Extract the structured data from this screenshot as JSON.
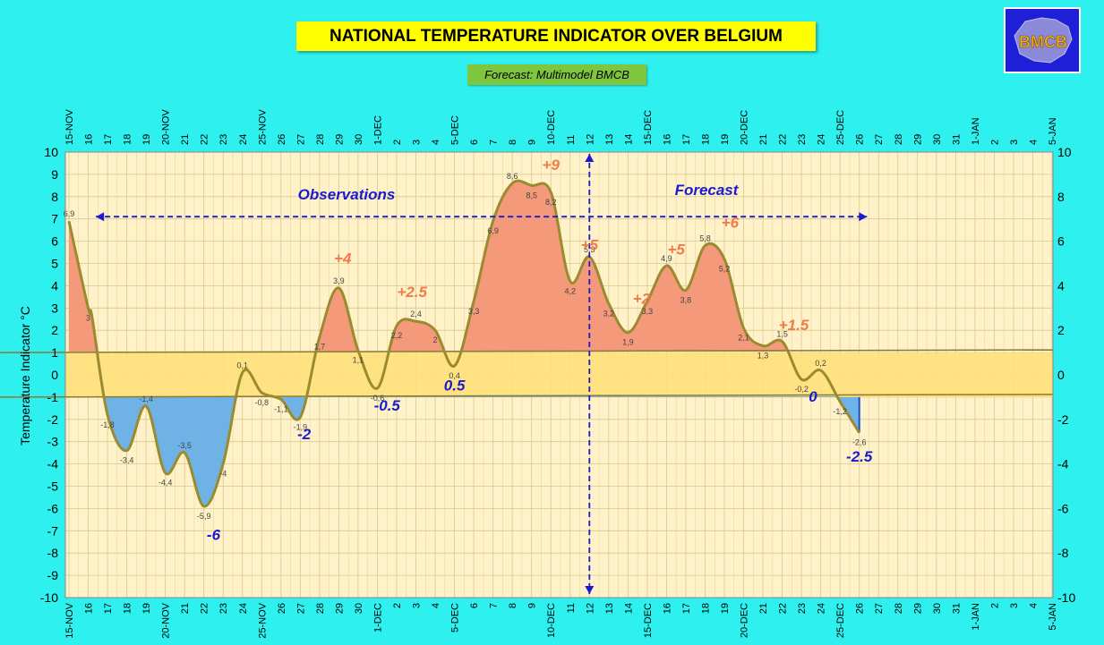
{
  "header": {
    "title": "NATIONAL TEMPERATURE INDICATOR OVER  BELGIUM",
    "subtitle": "Forecast:  Multimodel BMCB",
    "logo_text": "BMCB"
  },
  "colors": {
    "background": "#2ef0ee",
    "plot_bg": "#fff2c8",
    "grid": "#d8c890",
    "line": "#9a8a30",
    "warm_fill": "#f4997a",
    "cold_fill": "#6fb2e6",
    "band_fill": "#ffe07a",
    "annotation_blue": "#1a1ad0",
    "annotation_red": "#f07a4a"
  },
  "chart_data": {
    "type": "line",
    "ylabel": "Temperature Indicator   °C",
    "ylim": [
      -10,
      10
    ],
    "y2lim": [
      -10,
      10
    ],
    "yticks_left": [
      10,
      9,
      8,
      7,
      6,
      5,
      4,
      3,
      2,
      1,
      0,
      -1,
      -2,
      -3,
      -4,
      -5,
      -6,
      -7,
      -8,
      -9,
      -10
    ],
    "yticks_right": [
      10,
      8,
      6,
      4,
      2,
      0,
      -2,
      -4,
      -6,
      -8,
      -10
    ],
    "x_tick_labels": [
      "15-NOV",
      "16",
      "17",
      "18",
      "19",
      "20-NOV",
      "21",
      "22",
      "23",
      "24",
      "25-NOV",
      "26",
      "27",
      "28",
      "29",
      "30",
      "1-DEC",
      "2",
      "3",
      "4",
      "5-DEC",
      "6",
      "7",
      "8",
      "9",
      "10-DEC",
      "11",
      "12",
      "13",
      "14",
      "15-DEC",
      "16",
      "17",
      "18",
      "19",
      "20-DEC",
      "21",
      "22",
      "23",
      "24",
      "25-DEC",
      "26",
      "27",
      "28",
      "29",
      "30",
      "31",
      "1-JAN",
      "2",
      "3",
      "4",
      "5-JAN"
    ],
    "series": [
      {
        "x": [
          0,
          1,
          1.2,
          2,
          3,
          4,
          5,
          6,
          7,
          8,
          9,
          10,
          11,
          12,
          13,
          14,
          15,
          16,
          17,
          18,
          19,
          20,
          21,
          22,
          23,
          24,
          25,
          26,
          27,
          28,
          29,
          30,
          31,
          32,
          33,
          34,
          35,
          36,
          37,
          38,
          39,
          40,
          41
        ],
        "y": [
          6.9,
          3,
          2.6,
          -1.8,
          -3.4,
          -1.4,
          -4.4,
          -3.5,
          -5.9,
          -4,
          0.1,
          -0.8,
          -1.1,
          -1.9,
          1.7,
          3.9,
          1.1,
          -0.6,
          2.2,
          2.4,
          2,
          0.4,
          3.3,
          6.9,
          8.6,
          8.5,
          8.2,
          4.2,
          5.3,
          3.2,
          1.9,
          3.3,
          4.9,
          3.8,
          5.8,
          5.2,
          2.1,
          1.3,
          1.5,
          -0.2,
          0.2,
          -1.2,
          -2.6
        ],
        "point_labels": [
          "6,9",
          "3",
          "",
          "-1,8",
          "-3,4",
          "-1,4",
          "-4,4",
          "-3,5",
          "-5,9",
          "-4",
          "0,1",
          "-0,8",
          "-1,1",
          "-1,9",
          "1,7",
          "3,9",
          "1,1",
          "-0,6",
          "2,2",
          "2,4",
          "2",
          "0,4",
          "3,3",
          "6,9",
          "8,6",
          "8,5",
          "8,2",
          "4,2",
          "5,3",
          "3,2",
          "1,9",
          "3,3",
          "4,9",
          "3,8",
          "5,8",
          "5,2",
          "2,1",
          "1,3",
          "1,5",
          "-0,2",
          "0,2",
          "-1,2",
          "-2,6"
        ]
      }
    ],
    "normal_band": [
      -1,
      1
    ],
    "observation_end_x": 27,
    "annotations": {
      "observations_label": "Observations",
      "forecast_label": "Forecast",
      "values": [
        {
          "text": "-6",
          "x": 7.5,
          "y": -7.4,
          "tone": "blue"
        },
        {
          "text": "-2",
          "x": 12.2,
          "y": -2.9,
          "tone": "blue"
        },
        {
          "text": "+4",
          "x": 14.2,
          "y": 5.0,
          "tone": "red"
        },
        {
          "text": "-0.5",
          "x": 16.5,
          "y": -1.6,
          "tone": "blue"
        },
        {
          "text": "+2.5",
          "x": 17.8,
          "y": 3.5,
          "tone": "red"
        },
        {
          "text": "0.5",
          "x": 20.0,
          "y": -0.7,
          "tone": "blue"
        },
        {
          "text": "+9",
          "x": 25.0,
          "y": 9.2,
          "tone": "red"
        },
        {
          "text": "+5",
          "x": 27.0,
          "y": 5.6,
          "tone": "red"
        },
        {
          "text": "+2",
          "x": 29.7,
          "y": 3.2,
          "tone": "red"
        },
        {
          "text": "+5",
          "x": 31.5,
          "y": 5.4,
          "tone": "red"
        },
        {
          "text": "+6",
          "x": 34.3,
          "y": 6.6,
          "tone": "red"
        },
        {
          "text": "+1.5",
          "x": 37.6,
          "y": 2.0,
          "tone": "red"
        },
        {
          "text": "0",
          "x": 38.6,
          "y": -1.2,
          "tone": "blue"
        },
        {
          "text": "-2.5",
          "x": 41.0,
          "y": -3.9,
          "tone": "blue"
        }
      ]
    }
  }
}
